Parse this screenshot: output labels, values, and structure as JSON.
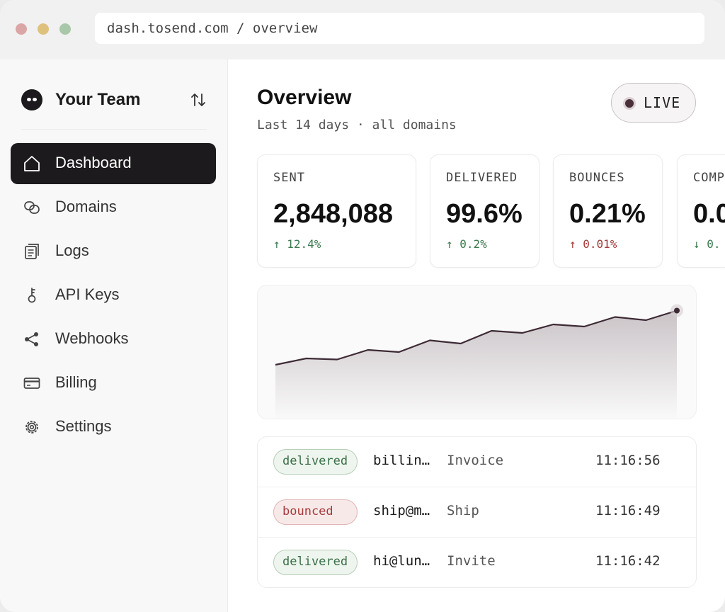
{
  "browser": {
    "url": "dash.tosend.com / overview"
  },
  "sidebar": {
    "team_name": "Your Team",
    "items": [
      {
        "label": "Dashboard",
        "icon": "home-icon",
        "active": true
      },
      {
        "label": "Domains",
        "icon": "link-icon",
        "active": false
      },
      {
        "label": "Logs",
        "icon": "document-icon",
        "active": false
      },
      {
        "label": "API Keys",
        "icon": "key-icon",
        "active": false
      },
      {
        "label": "Webhooks",
        "icon": "share-icon",
        "active": false
      },
      {
        "label": "Billing",
        "icon": "credit-card-icon",
        "active": false
      },
      {
        "label": "Settings",
        "icon": "gear-icon",
        "active": false
      }
    ]
  },
  "header": {
    "title": "Overview",
    "subtitle": "Last 14 days · all domains",
    "live_label": "LIVE"
  },
  "stats": [
    {
      "label": "SENT",
      "value": "2,848,088",
      "delta": "↑ 12.4%",
      "tone": "good"
    },
    {
      "label": "DELIVERED",
      "value": "99.6%",
      "delta": "↑ 0.2%",
      "tone": "good"
    },
    {
      "label": "BOUNCES",
      "value": "0.21%",
      "delta": "↑ 0.01%",
      "tone": "bad"
    },
    {
      "label": "COMP",
      "value": "0.0",
      "delta": "↓ 0.",
      "tone": "good"
    }
  ],
  "chart_data": {
    "type": "area",
    "values": [
      52,
      58,
      57,
      66,
      64,
      75,
      72,
      84,
      82,
      90,
      88,
      97,
      94,
      103
    ],
    "ylim": [
      0,
      120
    ]
  },
  "activity": [
    {
      "status": "delivered",
      "from": "billin…",
      "subject": "Invoice",
      "time": "11:16:56"
    },
    {
      "status": "bounced",
      "from": "ship@m…",
      "subject": "Ship",
      "time": "11:16:49"
    },
    {
      "status": "delivered",
      "from": "hi@lun…",
      "subject": "Invite",
      "time": "11:16:42"
    }
  ],
  "colors": {
    "accent_dark": "#1c1a1c",
    "chart_line": "#3d2a34",
    "good": "#3c7a4f",
    "bad": "#a33a3a"
  }
}
